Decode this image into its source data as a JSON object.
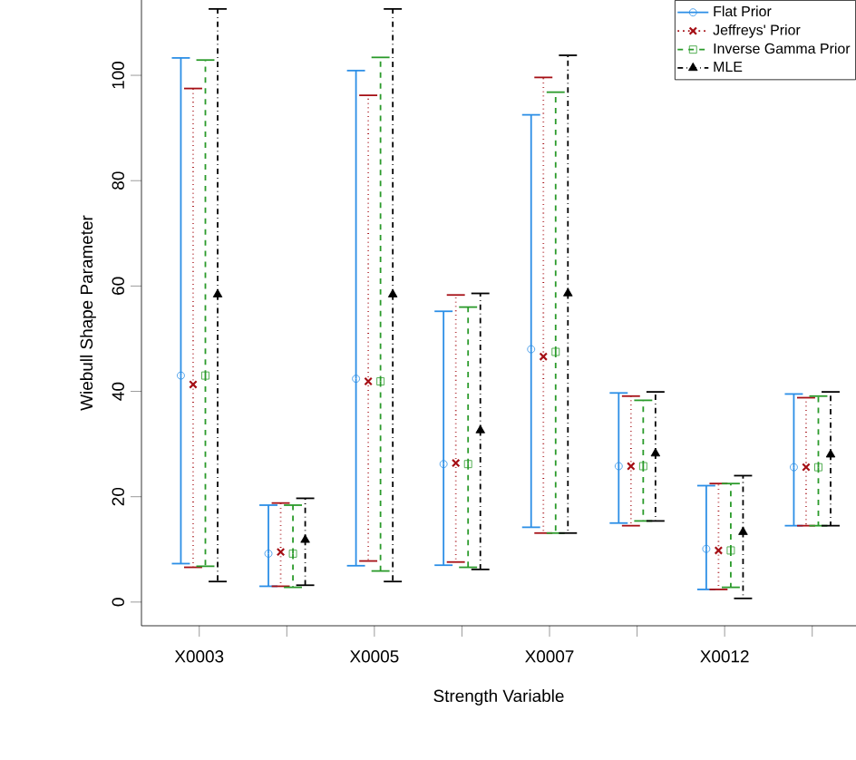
{
  "chart_data": {
    "type": "scatter",
    "xlabel": "Strength Variable",
    "ylabel": "Wiebull Shape Parameter",
    "categories": [
      "X0003",
      null,
      "X0005",
      null,
      "X0007",
      null,
      "X0012",
      null
    ],
    "ylim": [
      -4.5,
      114.3
    ],
    "yticks": [
      0,
      20,
      40,
      60,
      80,
      100
    ],
    "legend": "top right",
    "grid": false,
    "series": [
      {
        "name": "Flat Prior",
        "color": "#2b8ee6",
        "marker": "circle",
        "line_style": "solid",
        "values": [
          43,
          9.2,
          42.4,
          26.2,
          48,
          25.8,
          10.1,
          25.6
        ],
        "errors": [
          [
            7.3,
            103.3
          ],
          [
            3.0,
            18.4
          ],
          [
            6.9,
            100.9
          ],
          [
            7.0,
            55.2
          ],
          [
            14.2,
            92.5
          ],
          [
            15.0,
            39.7
          ],
          [
            2.4,
            22.1
          ],
          [
            14.5,
            39.5
          ]
        ]
      },
      {
        "name": "Jeffreys' Prior",
        "color": "#a50f15",
        "marker": "cross",
        "line_style": "dotted",
        "values": [
          41.3,
          9.5,
          41.9,
          26.4,
          46.6,
          25.8,
          9.8,
          25.6
        ],
        "errors": [
          [
            6.6,
            97.5
          ],
          [
            3.0,
            18.8
          ],
          [
            7.8,
            96.2
          ],
          [
            7.6,
            58.3
          ],
          [
            13.1,
            99.6
          ],
          [
            14.5,
            39.1
          ],
          [
            2.4,
            22.5
          ],
          [
            14.5,
            38.8
          ]
        ]
      },
      {
        "name": "Inverse Gamma Prior",
        "color": "#2a9a2a",
        "marker": "square",
        "line_style": "dashed",
        "values": [
          43,
          9.2,
          41.9,
          26.2,
          47.5,
          25.8,
          9.8,
          25.6
        ],
        "errors": [
          [
            6.8,
            102.9
          ],
          [
            2.8,
            18.4
          ],
          [
            5.9,
            103.4
          ],
          [
            6.6,
            56.0
          ],
          [
            13.1,
            96.8
          ],
          [
            15.4,
            38.3
          ],
          [
            2.8,
            22.5
          ],
          [
            14.5,
            39.1
          ]
        ]
      },
      {
        "name": "MLE",
        "color": "#000000",
        "marker": "triangle",
        "line_style": "dashdot",
        "values": [
          58.4,
          11.8,
          58.4,
          32.6,
          58.6,
          28.2,
          13.3,
          28.0
        ],
        "errors": [
          [
            3.9,
            112.6
          ],
          [
            3.2,
            19.7
          ],
          [
            3.9,
            112.6
          ],
          [
            6.2,
            58.6
          ],
          [
            13.1,
            103.8
          ],
          [
            15.4,
            39.9
          ],
          [
            0.7,
            24.0
          ],
          [
            14.5,
            39.9
          ]
        ]
      }
    ]
  }
}
